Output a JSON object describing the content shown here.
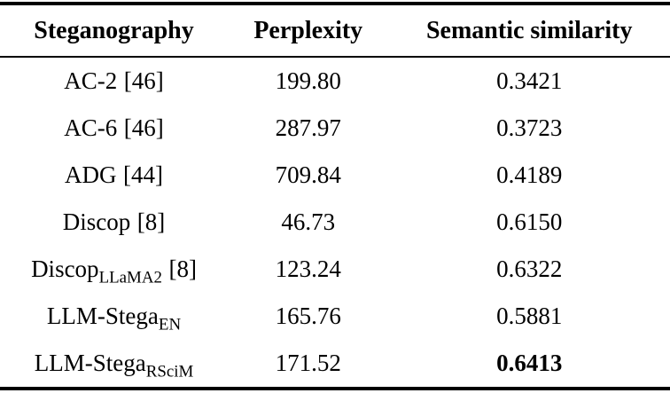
{
  "table": {
    "columns": {
      "steganography": "Steganography",
      "perplexity": "Perplexity",
      "semantic_similarity": "Semantic similarity"
    },
    "rows": [
      {
        "method": "AC-2",
        "sub": "",
        "ref": "[46]",
        "perplexity": "199.80",
        "similarity": "0.3421",
        "bold_similarity": false
      },
      {
        "method": "AC-6",
        "sub": "",
        "ref": "[46]",
        "perplexity": "287.97",
        "similarity": "0.3723",
        "bold_similarity": false
      },
      {
        "method": "ADG",
        "sub": "",
        "ref": "[44]",
        "perplexity": "709.84",
        "similarity": "0.4189",
        "bold_similarity": false
      },
      {
        "method": "Discop",
        "sub": "",
        "ref": "[8]",
        "perplexity": "46.73",
        "similarity": "0.6150",
        "bold_similarity": false
      },
      {
        "method": "Discop",
        "sub": "LLaMA2",
        "ref": "[8]",
        "perplexity": "123.24",
        "similarity": "0.6322",
        "bold_similarity": false
      },
      {
        "method": "LLM-Stega",
        "sub": "EN",
        "ref": "",
        "perplexity": "165.76",
        "similarity": "0.5881",
        "bold_similarity": false
      },
      {
        "method": "LLM-Stega",
        "sub": "RSciM",
        "ref": "",
        "perplexity": "171.52",
        "similarity": "0.6413",
        "bold_similarity": true
      }
    ]
  }
}
